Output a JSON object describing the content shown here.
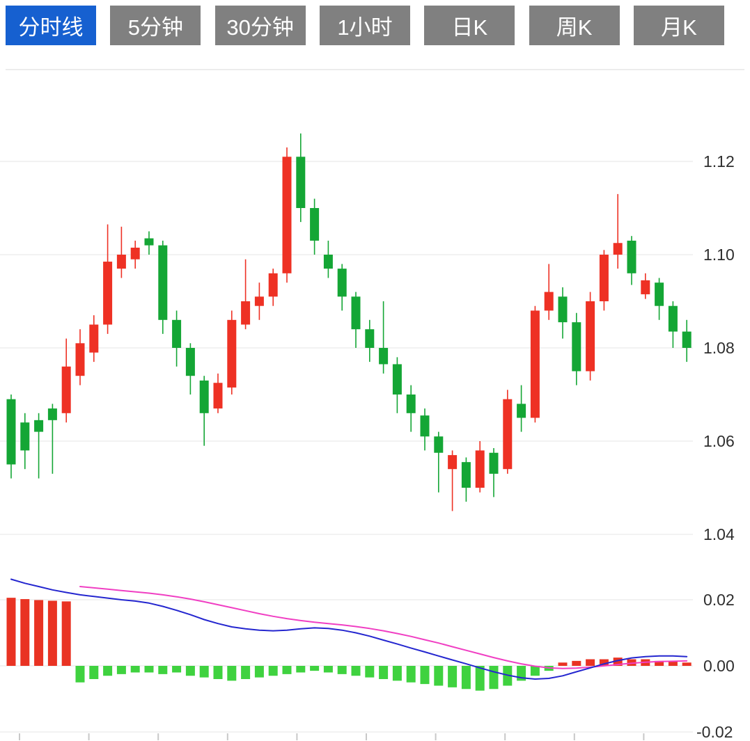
{
  "toolbar": {
    "tabs": [
      {
        "label": "分时线",
        "active": true
      },
      {
        "label": "5分钟",
        "active": false
      },
      {
        "label": "30分钟",
        "active": false
      },
      {
        "label": "1小时",
        "active": false
      },
      {
        "label": "日K",
        "active": false
      },
      {
        "label": "周K",
        "active": false
      },
      {
        "label": "月K",
        "active": false
      }
    ]
  },
  "colors": {
    "tab_active_bg": "#1660d0",
    "tab_inactive_bg": "#808080",
    "tab_text": "#ffffff",
    "up": "#ee3124",
    "down": "#14a635",
    "macd_pos": "#e93323",
    "macd_neg": "#3fd23f",
    "dif_line": "#2426cf",
    "dea_line": "#f03fc3",
    "grid": "#e6e6e6",
    "separator": "#d9d9d9",
    "axis_text": "#2e2e2e"
  },
  "chart_data": {
    "type": "candlestick",
    "title": "",
    "legend_position": "none",
    "grid": true,
    "panels": [
      "price",
      "macd"
    ],
    "price_axis": [
      {
        "label": "1.12",
        "value": 1.12
      },
      {
        "label": "1.10",
        "value": 1.1
      },
      {
        "label": "1.08",
        "value": 1.08
      },
      {
        "label": "1.06",
        "value": 1.06
      },
      {
        "label": "1.04",
        "value": 1.04
      }
    ],
    "macd_axis": [
      {
        "label": "0.02",
        "value": 0.02
      },
      {
        "label": "0.00",
        "value": 0.0
      },
      {
        "label": "-0.02",
        "value": -0.02
      }
    ],
    "candles_format": [
      "open",
      "high",
      "low",
      "close"
    ],
    "candles": [
      [
        1.069,
        1.07,
        1.052,
        1.055
      ],
      [
        1.064,
        1.066,
        1.054,
        1.058
      ],
      [
        1.0645,
        1.066,
        1.052,
        1.062
      ],
      [
        1.067,
        1.068,
        1.053,
        1.0645
      ],
      [
        1.066,
        1.082,
        1.064,
        1.076
      ],
      [
        1.074,
        1.084,
        1.072,
        1.081
      ],
      [
        1.079,
        1.087,
        1.077,
        1.085
      ],
      [
        1.085,
        1.1065,
        1.083,
        1.0985
      ],
      [
        1.097,
        1.106,
        1.095,
        1.1
      ],
      [
        1.099,
        1.103,
        1.097,
        1.1015
      ],
      [
        1.1035,
        1.105,
        1.1,
        1.102
      ],
      [
        1.102,
        1.103,
        1.083,
        1.086
      ],
      [
        1.086,
        1.088,
        1.076,
        1.08
      ],
      [
        1.08,
        1.081,
        1.07,
        1.074
      ],
      [
        1.073,
        1.074,
        1.059,
        1.066
      ],
      [
        1.067,
        1.0745,
        1.066,
        1.0725
      ],
      [
        1.0715,
        1.088,
        1.07,
        1.086
      ],
      [
        1.085,
        1.099,
        1.084,
        1.09
      ],
      [
        1.089,
        1.094,
        1.086,
        1.091
      ],
      [
        1.091,
        1.097,
        1.089,
        1.096
      ],
      [
        1.096,
        1.123,
        1.094,
        1.121
      ],
      [
        1.121,
        1.126,
        1.107,
        1.11
      ],
      [
        1.11,
        1.112,
        1.1,
        1.103
      ],
      [
        1.1,
        1.103,
        1.095,
        1.097
      ],
      [
        1.097,
        1.098,
        1.088,
        1.091
      ],
      [
        1.091,
        1.092,
        1.08,
        1.084
      ],
      [
        1.084,
        1.086,
        1.077,
        1.08
      ],
      [
        1.08,
        1.09,
        1.0745,
        1.0765
      ],
      [
        1.0765,
        1.078,
        1.066,
        1.07
      ],
      [
        1.07,
        1.072,
        1.062,
        1.066
      ],
      [
        1.0655,
        1.067,
        1.058,
        1.061
      ],
      [
        1.061,
        1.062,
        1.049,
        1.0575
      ],
      [
        1.054,
        1.058,
        1.045,
        1.057
      ],
      [
        1.0555,
        1.0565,
        1.047,
        1.05
      ],
      [
        1.05,
        1.06,
        1.049,
        1.058
      ],
      [
        1.0575,
        1.0585,
        1.048,
        1.053
      ],
      [
        1.054,
        1.071,
        1.053,
        1.069
      ],
      [
        1.068,
        1.072,
        1.062,
        1.065
      ],
      [
        1.065,
        1.089,
        1.064,
        1.088
      ],
      [
        1.088,
        1.098,
        1.086,
        1.092
      ],
      [
        1.091,
        1.093,
        1.082,
        1.0855
      ],
      [
        1.0855,
        1.0875,
        1.072,
        1.075
      ],
      [
        1.075,
        1.092,
        1.073,
        1.09
      ],
      [
        1.09,
        1.101,
        1.088,
        1.1
      ],
      [
        1.1,
        1.113,
        1.097,
        1.1025
      ],
      [
        1.103,
        1.104,
        1.0935,
        1.096
      ],
      [
        1.0915,
        1.096,
        1.0905,
        1.0945
      ],
      [
        1.094,
        1.095,
        1.086,
        1.089
      ],
      [
        1.089,
        1.09,
        1.08,
        1.0835
      ],
      [
        1.0835,
        1.086,
        1.077,
        1.08
      ]
    ],
    "macd": {
      "hist": [
        0.0206,
        0.0202,
        0.0199,
        0.0197,
        0.0195,
        -0.005,
        -0.004,
        -0.003,
        -0.0025,
        -0.002,
        -0.002,
        -0.0025,
        -0.002,
        -0.003,
        -0.0035,
        -0.004,
        -0.0045,
        -0.004,
        -0.0035,
        -0.003,
        -0.0025,
        -0.002,
        -0.0015,
        -0.002,
        -0.0025,
        -0.003,
        -0.0035,
        -0.004,
        -0.0045,
        -0.005,
        -0.0055,
        -0.006,
        -0.0065,
        -0.007,
        -0.0075,
        -0.007,
        -0.006,
        -0.0045,
        -0.003,
        -0.0015,
        0.001,
        0.0015,
        0.002,
        0.002,
        0.0025,
        0.002,
        0.002,
        0.0015,
        0.0015,
        0.001
      ],
      "dif": [
        0.0262,
        0.025,
        0.024,
        0.023,
        0.0222,
        0.0215,
        0.021,
        0.0205,
        0.02,
        0.0196,
        0.019,
        0.018,
        0.0168,
        0.0155,
        0.014,
        0.0128,
        0.0118,
        0.0112,
        0.0108,
        0.0106,
        0.0108,
        0.0112,
        0.0115,
        0.0113,
        0.0108,
        0.01,
        0.009,
        0.0078,
        0.0066,
        0.0054,
        0.0042,
        0.003,
        0.0018,
        0.0006,
        -0.0006,
        -0.0018,
        -0.0028,
        -0.0036,
        -0.004,
        -0.0038,
        -0.003,
        -0.0018,
        -0.0006,
        0.0006,
        0.0016,
        0.0024,
        0.0028,
        0.003,
        0.003,
        0.0028
      ],
      "dea": [
        null,
        null,
        null,
        null,
        null,
        0.024,
        0.0236,
        0.0232,
        0.0228,
        0.0224,
        0.022,
        0.0215,
        0.0209,
        0.0202,
        0.0194,
        0.0185,
        0.0176,
        0.0167,
        0.0158,
        0.015,
        0.0143,
        0.0137,
        0.0132,
        0.0128,
        0.0124,
        0.0119,
        0.0113,
        0.0106,
        0.0098,
        0.0089,
        0.0079,
        0.0069,
        0.0058,
        0.0047,
        0.0036,
        0.0025,
        0.0015,
        0.0006,
        -0.0001,
        -0.0006,
        -0.0008,
        -0.0007,
        -0.0004,
        0,
        0.0004,
        0.0008,
        0.0011,
        0.0013,
        0.0014,
        0.0015
      ]
    }
  }
}
